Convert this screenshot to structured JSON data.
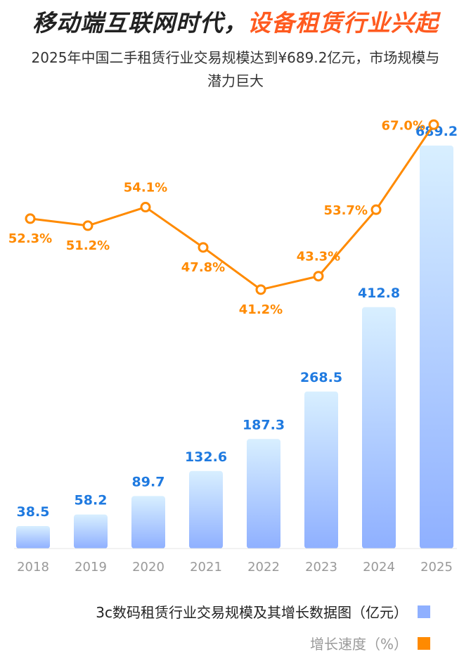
{
  "header": {
    "title_main": "移动端互联网时代，",
    "title_accent": "设备租赁行业兴起",
    "subtitle": "2025年中国二手租赁行业交易规模达到¥689.2亿元，市场规模与潜力巨大"
  },
  "colors": {
    "title": "#222222",
    "accent": "#ff5a1f",
    "bar_top": "#d8efff",
    "bar_bottom": "#8fb0ff",
    "bar_label": "#1f7ae0",
    "line": "#ff8a00",
    "axis_label": "#999999"
  },
  "chart_data": {
    "type": "bar",
    "categories": [
      "2018",
      "2019",
      "2020",
      "2021",
      "2022",
      "2023",
      "2024",
      "2025"
    ],
    "series": [
      {
        "name": "3c数码租赁行业交易规模及其增长数据图（亿元）",
        "type": "bar",
        "values": [
          38.5,
          58.2,
          89.7,
          132.6,
          187.3,
          268.5,
          412.8,
          689.2
        ],
        "value_labels": [
          "38.5",
          "58.2",
          "89.7",
          "132.6",
          "187.3",
          "268.5",
          "412.8",
          "689.2"
        ]
      },
      {
        "name": "增长速度（%）",
        "type": "line",
        "values": [
          52.3,
          51.2,
          54.1,
          47.8,
          41.2,
          43.3,
          53.7,
          67.0
        ],
        "value_labels": [
          "52.3%",
          "51.2%",
          "54.1%",
          "47.8%",
          "41.2%",
          "43.3%",
          "53.7%",
          "67.0%"
        ],
        "label_side": [
          "below",
          "below",
          "above",
          "below",
          "below",
          "above",
          "left",
          "left"
        ]
      }
    ],
    "y_range": [
      0,
      700
    ],
    "y2_range": [
      15,
      70
    ],
    "grid": false,
    "legend_position": "bottom-right"
  },
  "legend": [
    {
      "label": "3c数码租赁行业交易规模及其增长数据图（亿元）"
    },
    {
      "label": "增长速度（%）"
    }
  ]
}
